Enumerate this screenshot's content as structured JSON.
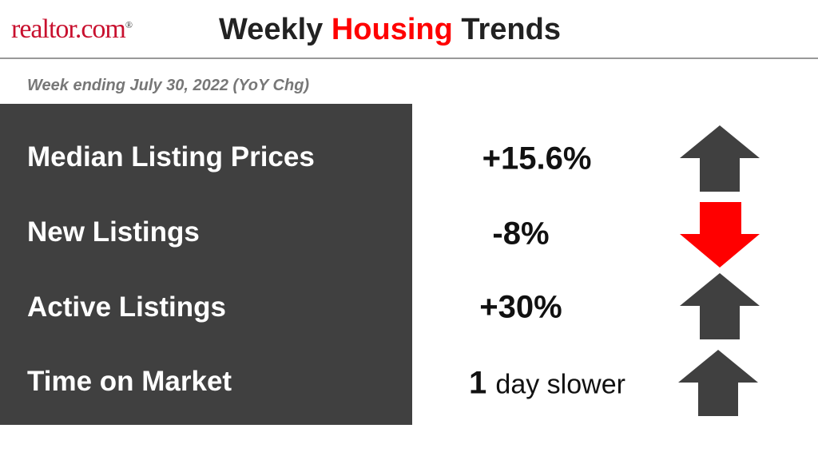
{
  "header": {
    "logo": "realtor.com",
    "logo_mark": "®",
    "title": [
      "Weekly",
      "Housing",
      "Trends"
    ]
  },
  "subtitle": "Week ending July 30, 2022 (YoY Chg)",
  "rows": [
    {
      "label": "Median Listing Prices",
      "value": "+15.6%"
    },
    {
      "label": "New Listings",
      "value": "-8%"
    },
    {
      "label": "Active Listings",
      "value": "+30%"
    },
    {
      "label": "Time on Market",
      "value": "1",
      "unit": "day slower"
    }
  ]
}
